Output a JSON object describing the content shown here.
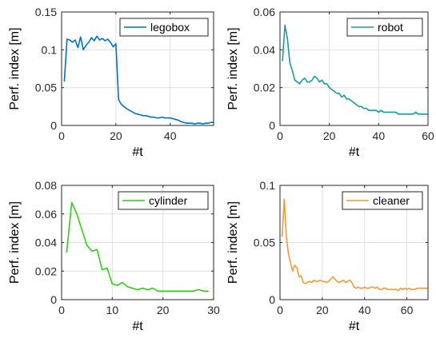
{
  "chart_data": [
    {
      "type": "line",
      "xlabel": "#t",
      "ylabel": "Perf. index [m]",
      "xlim": [
        0,
        56
      ],
      "ylim": [
        0,
        0.15
      ],
      "xticks": [
        0,
        20,
        40
      ],
      "xtick_labels": [
        "0",
        "20",
        "40"
      ],
      "yticks": [
        0,
        0.05,
        0.1,
        0.15
      ],
      "ytick_labels": [
        "0",
        "0.05",
        "0.1",
        "0.15"
      ],
      "grid": true,
      "legend_position": "top-right",
      "series": [
        {
          "name": "legobox",
          "color": "#0072BD",
          "x": [
            1,
            2,
            3,
            4,
            5,
            6,
            7,
            8,
            9,
            10,
            11,
            12,
            13,
            14,
            15,
            16,
            17,
            18,
            19,
            20,
            21,
            22,
            23,
            24,
            25,
            26,
            27,
            28,
            29,
            30,
            31,
            32,
            33,
            34,
            35,
            36,
            37,
            38,
            39,
            40,
            41,
            42,
            43,
            44,
            45,
            46,
            47,
            48,
            49,
            50,
            51,
            52,
            53,
            54,
            55,
            56
          ],
          "y": [
            0.058,
            0.114,
            0.113,
            0.11,
            0.113,
            0.103,
            0.117,
            0.1,
            0.106,
            0.11,
            0.116,
            0.112,
            0.118,
            0.113,
            0.115,
            0.112,
            0.114,
            0.11,
            0.104,
            0.108,
            0.034,
            0.028,
            0.025,
            0.022,
            0.02,
            0.018,
            0.016,
            0.015,
            0.014,
            0.013,
            0.013,
            0.012,
            0.011,
            0.011,
            0.01,
            0.01,
            0.011,
            0.01,
            0.01,
            0.01,
            0.009,
            0.008,
            0.007,
            0.005,
            0.004,
            0.003,
            0.003,
            0.003,
            0.002,
            0.003,
            0.003,
            0.002,
            0.003,
            0.003,
            0.004,
            0.004
          ]
        }
      ]
    },
    {
      "type": "line",
      "xlabel": "#t",
      "ylabel": "Perf. index [m]",
      "xlim": [
        0,
        60
      ],
      "ylim": [
        0,
        0.06
      ],
      "xticks": [
        0,
        20,
        40,
        60
      ],
      "xtick_labels": [
        "0",
        "20",
        "40",
        "60"
      ],
      "yticks": [
        0,
        0.02,
        0.04,
        0.06
      ],
      "ytick_labels": [
        "0",
        "0.02",
        "0.04",
        "0.06"
      ],
      "grid": true,
      "legend_position": "top-right",
      "series": [
        {
          "name": "robot",
          "color": "#1A9A9A",
          "x": [
            1,
            2,
            3,
            4,
            5,
            6,
            7,
            8,
            9,
            10,
            11,
            12,
            13,
            14,
            15,
            16,
            17,
            18,
            19,
            20,
            21,
            22,
            23,
            24,
            25,
            26,
            27,
            28,
            29,
            30,
            31,
            32,
            33,
            34,
            35,
            36,
            37,
            38,
            39,
            40,
            41,
            42,
            43,
            44,
            45,
            46,
            47,
            48,
            49,
            50,
            51,
            52,
            53,
            54,
            55,
            56,
            57,
            58,
            59,
            60
          ],
          "y": [
            0.034,
            0.053,
            0.046,
            0.033,
            0.029,
            0.024,
            0.023,
            0.022,
            0.024,
            0.025,
            0.023,
            0.023,
            0.024,
            0.026,
            0.025,
            0.023,
            0.024,
            0.022,
            0.022,
            0.02,
            0.019,
            0.018,
            0.017,
            0.017,
            0.015,
            0.016,
            0.014,
            0.014,
            0.013,
            0.012,
            0.011,
            0.01,
            0.01,
            0.009,
            0.009,
            0.008,
            0.008,
            0.008,
            0.008,
            0.007,
            0.008,
            0.007,
            0.007,
            0.007,
            0.007,
            0.007,
            0.007,
            0.006,
            0.006,
            0.006,
            0.006,
            0.006,
            0.006,
            0.006,
            0.007,
            0.006,
            0.006,
            0.006,
            0.006,
            0.006
          ]
        }
      ]
    },
    {
      "type": "line",
      "xlabel": "#t",
      "ylabel": "Perf. index [m]",
      "xlim": [
        0,
        30
      ],
      "ylim": [
        0,
        0.08
      ],
      "xticks": [
        0,
        10,
        20,
        30
      ],
      "xtick_labels": [
        "0",
        "10",
        "20",
        "30"
      ],
      "yticks": [
        0,
        0.02,
        0.04,
        0.06,
        0.08
      ],
      "ytick_labels": [
        "0",
        "0.02",
        "0.04",
        "0.06",
        "0.08"
      ],
      "grid": true,
      "legend_position": "top-right",
      "series": [
        {
          "name": "cylinder",
          "color": "#33CC1A",
          "x": [
            1,
            2,
            3,
            4,
            5,
            6,
            7,
            8,
            9,
            10,
            11,
            12,
            13,
            14,
            15,
            16,
            17,
            18,
            19,
            20,
            21,
            22,
            23,
            24,
            25,
            26,
            27,
            28,
            29
          ],
          "y": [
            0.033,
            0.068,
            0.06,
            0.049,
            0.038,
            0.034,
            0.035,
            0.021,
            0.022,
            0.011,
            0.01,
            0.012,
            0.009,
            0.008,
            0.007,
            0.008,
            0.007,
            0.008,
            0.006,
            0.006,
            0.006,
            0.006,
            0.006,
            0.006,
            0.006,
            0.006,
            0.007,
            0.006,
            0.006
          ]
        }
      ]
    },
    {
      "type": "line",
      "xlabel": "#t",
      "ylabel": "Perf. index [m]",
      "xlim": [
        0,
        70
      ],
      "ylim": [
        0,
        0.1
      ],
      "xticks": [
        0,
        20,
        40,
        60
      ],
      "xtick_labels": [
        "0",
        "20",
        "40",
        "60"
      ],
      "yticks": [
        0,
        0.05,
        0.1
      ],
      "ytick_labels": [
        "0",
        "0.05",
        "0.1"
      ],
      "grid": true,
      "legend_position": "top-right",
      "series": [
        {
          "name": "cleaner",
          "color": "#F09A3C",
          "x": [
            1,
            2,
            3,
            4,
            5,
            6,
            7,
            8,
            9,
            10,
            11,
            12,
            13,
            14,
            15,
            16,
            17,
            18,
            19,
            20,
            21,
            22,
            23,
            24,
            25,
            26,
            27,
            28,
            29,
            30,
            31,
            32,
            33,
            34,
            35,
            36,
            37,
            38,
            39,
            40,
            41,
            42,
            43,
            44,
            45,
            46,
            47,
            48,
            49,
            50,
            51,
            52,
            53,
            54,
            55,
            56,
            57,
            58,
            59,
            60,
            61,
            62,
            63,
            64,
            65,
            66,
            67,
            68,
            69,
            70
          ],
          "y": [
            0.055,
            0.088,
            0.055,
            0.04,
            0.032,
            0.025,
            0.03,
            0.028,
            0.02,
            0.021,
            0.015,
            0.014,
            0.015,
            0.016,
            0.015,
            0.017,
            0.016,
            0.016,
            0.017,
            0.016,
            0.016,
            0.015,
            0.016,
            0.018,
            0.02,
            0.018,
            0.016,
            0.015,
            0.016,
            0.017,
            0.015,
            0.016,
            0.017,
            0.015,
            0.011,
            0.01,
            0.011,
            0.01,
            0.01,
            0.011,
            0.01,
            0.01,
            0.011,
            0.011,
            0.01,
            0.011,
            0.009,
            0.009,
            0.01,
            0.01,
            0.009,
            0.009,
            0.009,
            0.009,
            0.009,
            0.008,
            0.01,
            0.009,
            0.01,
            0.009,
            0.01,
            0.009,
            0.009,
            0.009,
            0.01,
            0.01,
            0.01,
            0.01,
            0.01,
            0.01
          ]
        }
      ]
    }
  ]
}
